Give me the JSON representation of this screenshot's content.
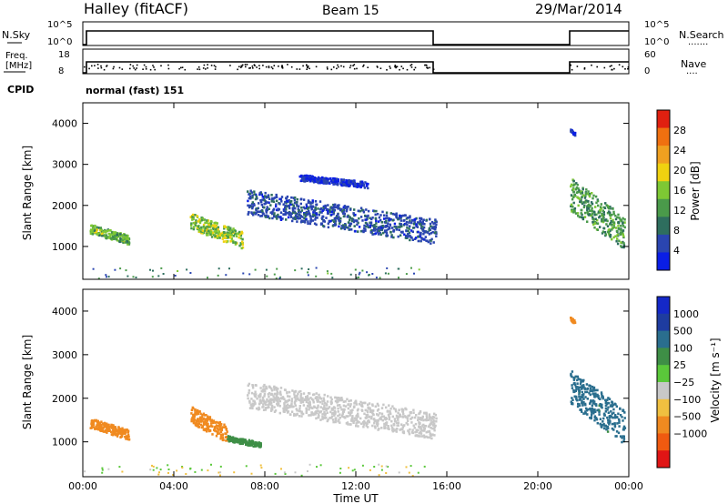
{
  "header": {
    "station": "Halley (fitACF)",
    "beam": "Beam 15",
    "date": "29/Mar/2014"
  },
  "strips": {
    "nsky_label": "N.Sky",
    "nsky_ticks": [
      "10^5",
      "10^0"
    ],
    "nsearch_label": "N.Search",
    "nsearch_ticks": [
      "10^5",
      "10^0"
    ],
    "freq_label_1": "Freq.",
    "freq_label_2": "[MHz]",
    "freq_ticks": [
      "18",
      "8"
    ],
    "nave_label": "Nave",
    "nave_ticks": [
      "60",
      "0"
    ],
    "cpid_label": "CPID",
    "cpid_value": "normal (fast) 151"
  },
  "x_axis": {
    "title": "Time UT",
    "ticks": [
      "00:00",
      "04:00",
      "08:00",
      "12:00",
      "16:00",
      "20:00",
      "00:00"
    ],
    "range_hours": [
      0,
      24
    ]
  },
  "colors": {
    "power_scale": [
      "#0a1ee6",
      "#2a45b0",
      "#2e6e5e",
      "#4a9a4a",
      "#7ec834",
      "#f0d210",
      "#f0a020",
      "#f07010",
      "#e02010"
    ],
    "velocity_scale": [
      "#e01515",
      "#f05a10",
      "#f08a20",
      "#f0c040",
      "#c8c8c8",
      "#5ac83a",
      "#3e8e46",
      "#2a6e8e",
      "#1e3ca0",
      "#1428c8"
    ]
  },
  "chart_data": [
    {
      "type": "heatmap",
      "name": "power",
      "ylabel": "Slant Range [km]",
      "ylim": [
        200,
        4500
      ],
      "yticks": [
        "1000",
        "2000",
        "3000",
        "4000"
      ],
      "colorbar_label": "Power [dB]",
      "colorbar_ticks": [
        "4",
        "8",
        "12",
        "16",
        "20",
        "24",
        "28"
      ],
      "colorbar_range": [
        0,
        32
      ],
      "radar_gap_hours": [
        15.5,
        21.3
      ],
      "regions": [
        {
          "t0": 0.3,
          "t1": 2.0,
          "r0": 1000,
          "r1": 1450,
          "value": 14
        },
        {
          "t0": 4.7,
          "t1": 7.0,
          "r0": 850,
          "r1": 1650,
          "value": 16
        },
        {
          "t0": 7.2,
          "t1": 15.5,
          "r0": 900,
          "r1": 2100,
          "value": 6
        },
        {
          "t0": 9.5,
          "t1": 12.5,
          "r0": 2400,
          "r1": 2700,
          "value": 3
        },
        {
          "t0": 21.4,
          "t1": 23.8,
          "r0": 700,
          "r1": 2300,
          "value": 12
        },
        {
          "t0": 21.4,
          "t1": 21.6,
          "r0": 3700,
          "r1": 3850,
          "value": 4
        }
      ]
    },
    {
      "type": "heatmap",
      "name": "velocity",
      "ylabel": "Slant Range [km]",
      "ylim": [
        200,
        4500
      ],
      "yticks": [
        "1000",
        "2000",
        "3000",
        "4000"
      ],
      "colorbar_label": "Velocity [m s⁻¹]",
      "colorbar_ticks": [
        "1000",
        "500",
        "100",
        "25",
        "−25",
        "−100",
        "−500",
        "−1000"
      ],
      "radar_gap_hours": [
        15.5,
        21.3
      ],
      "regions": [
        {
          "t0": 0.3,
          "t1": 2.0,
          "r0": 1000,
          "r1": 1450,
          "value": -200
        },
        {
          "t0": 4.7,
          "t1": 6.3,
          "r0": 900,
          "r1": 1650,
          "value": -300
        },
        {
          "t0": 6.3,
          "t1": 7.8,
          "r0": 850,
          "r1": 1100,
          "value": 150
        },
        {
          "t0": 7.2,
          "t1": 15.5,
          "r0": 900,
          "r1": 2100,
          "value": 0
        },
        {
          "t0": 21.4,
          "t1": 23.8,
          "r0": 700,
          "r1": 2300,
          "value": 700
        },
        {
          "t0": 21.4,
          "t1": 21.6,
          "r0": 3700,
          "r1": 3850,
          "value": -300
        }
      ]
    }
  ]
}
